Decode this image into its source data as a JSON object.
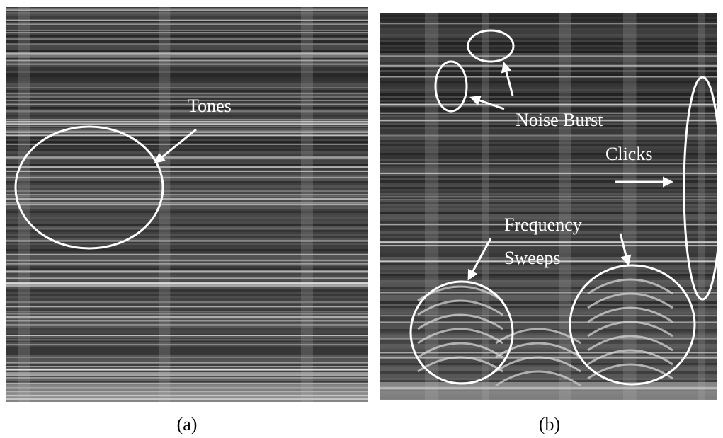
{
  "panels": [
    {
      "label": "(a)",
      "annotations": [
        {
          "lines": [
            "Tones"
          ]
        }
      ]
    },
    {
      "label": "(b)",
      "annotations": [
        {
          "lines": [
            "Noise Burst"
          ]
        },
        {
          "lines": [
            "Clicks"
          ]
        },
        {
          "lines": [
            "Frequency",
            "Sweeps"
          ]
        }
      ]
    }
  ]
}
